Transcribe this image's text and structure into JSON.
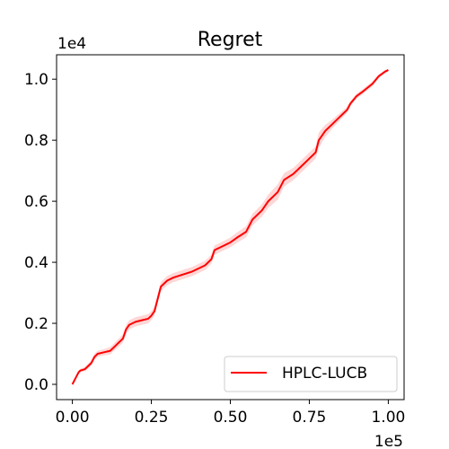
{
  "chart_data": {
    "type": "line",
    "title": "Regret",
    "xlabel": "",
    "ylabel": "",
    "x_multiplier_label": "1e5",
    "y_multiplier_label": "1e4",
    "xlim": [
      -0.05,
      1.05
    ],
    "ylim": [
      -0.05,
      1.08
    ],
    "xticks": [
      0.0,
      0.25,
      0.5,
      0.75,
      1.0
    ],
    "xtick_labels": [
      "0.00",
      "0.25",
      "0.50",
      "0.75",
      "1.00"
    ],
    "yticks": [
      0.0,
      0.2,
      0.4,
      0.6,
      0.8,
      1.0
    ],
    "ytick_labels": [
      "0.0",
      "0.2",
      "0.4",
      "0.6",
      "0.8",
      "1.0"
    ],
    "grid": false,
    "legend_position": "lower-right",
    "series": [
      {
        "name": "HPLC-LUCB",
        "color": "#ff0000",
        "band_color": "#ffcccc",
        "x": [
          0.0,
          0.01,
          0.02,
          0.025,
          0.04,
          0.05,
          0.06,
          0.07,
          0.08,
          0.1,
          0.12,
          0.13,
          0.14,
          0.15,
          0.16,
          0.17,
          0.18,
          0.2,
          0.22,
          0.24,
          0.25,
          0.26,
          0.27,
          0.28,
          0.3,
          0.32,
          0.35,
          0.38,
          0.4,
          0.42,
          0.44,
          0.45,
          0.47,
          0.5,
          0.52,
          0.55,
          0.57,
          0.6,
          0.62,
          0.65,
          0.67,
          0.7,
          0.72,
          0.75,
          0.77,
          0.78,
          0.8,
          0.82,
          0.85,
          0.87,
          0.88,
          0.9,
          0.92,
          0.95,
          0.97,
          0.99,
          1.0
        ],
        "y": [
          0.0,
          0.02,
          0.04,
          0.045,
          0.05,
          0.06,
          0.07,
          0.09,
          0.1,
          0.105,
          0.11,
          0.12,
          0.13,
          0.14,
          0.15,
          0.18,
          0.195,
          0.205,
          0.21,
          0.215,
          0.225,
          0.24,
          0.28,
          0.32,
          0.34,
          0.35,
          0.36,
          0.37,
          0.38,
          0.39,
          0.41,
          0.44,
          0.45,
          0.465,
          0.48,
          0.5,
          0.54,
          0.57,
          0.6,
          0.63,
          0.67,
          0.69,
          0.71,
          0.74,
          0.76,
          0.8,
          0.83,
          0.85,
          0.88,
          0.9,
          0.92,
          0.945,
          0.96,
          0.985,
          1.01,
          1.025,
          1.03
        ],
        "band_halfwidth": [
          0.0,
          0.003,
          0.005,
          0.006,
          0.007,
          0.008,
          0.009,
          0.01,
          0.01,
          0.01,
          0.012,
          0.012,
          0.013,
          0.013,
          0.014,
          0.015,
          0.015,
          0.015,
          0.015,
          0.015,
          0.015,
          0.015,
          0.015,
          0.015,
          0.015,
          0.015,
          0.015,
          0.015,
          0.015,
          0.015,
          0.015,
          0.015,
          0.015,
          0.016,
          0.017,
          0.018,
          0.019,
          0.02,
          0.022,
          0.025,
          0.022,
          0.02,
          0.02,
          0.02,
          0.02,
          0.025,
          0.02,
          0.015,
          0.012,
          0.01,
          0.008,
          0.008,
          0.008,
          0.008,
          0.006,
          0.005,
          0.004
        ]
      }
    ]
  }
}
